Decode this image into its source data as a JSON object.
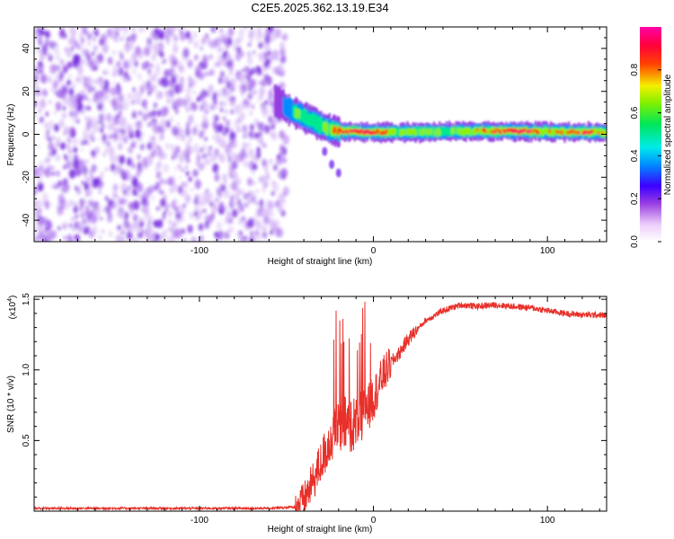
{
  "chart_data": [
    {
      "type": "heatmap",
      "title": "C2E5.2025.362.13.19.E34",
      "xlabel": "Height of straight line (km)",
      "ylabel": "Frequency (Hz)",
      "xlim": [
        -195,
        134
      ],
      "ylim": [
        -50,
        50
      ],
      "xticks": [
        -100,
        0,
        100
      ],
      "xtick_labels": [
        "-100",
        "0",
        "100"
      ],
      "yticks": [
        -40,
        -20,
        0,
        20,
        40
      ],
      "ytick_labels": [
        "-40",
        "-20",
        "0",
        "20",
        "40"
      ],
      "colorbar": {
        "label": "Normalized spectral amplitude",
        "range": [
          0,
          1
        ],
        "ticks": [
          0.0,
          0.2,
          0.4,
          0.6,
          0.8
        ],
        "tick_labels": [
          "0.0",
          "0.2",
          "0.4",
          "0.6",
          "0.8"
        ]
      },
      "noise_region_x": [
        -195,
        -50
      ],
      "ridge": {
        "x": [
          -57,
          -50,
          -45,
          -40,
          -35,
          -30,
          -25,
          -20,
          -15,
          -10,
          -5,
          0,
          10,
          20,
          40,
          60,
          80,
          100,
          120,
          134
        ],
        "freq": [
          16,
          12,
          10,
          8,
          6,
          4,
          2,
          1.5,
          1.5,
          1.3,
          1,
          1,
          1,
          1,
          1.2,
          1.5,
          1.5,
          1.2,
          1,
          1
        ],
        "amplitude": [
          0.15,
          0.4,
          0.55,
          0.55,
          0.5,
          0.55,
          0.7,
          0.8,
          0.85,
          0.9,
          0.95,
          0.95,
          0.7,
          0.65,
          0.6,
          0.7,
          0.95,
          0.7,
          0.85,
          0.7
        ]
      },
      "branch": {
        "x": [
          -28,
          -24,
          -20
        ],
        "freq": [
          -8,
          -14,
          -18
        ]
      }
    },
    {
      "type": "line",
      "xlabel": "Height of straight line (km)",
      "ylabel": "SNR (10 * v/v)",
      "y_scale_label": "(x10",
      "y_scale_exponent": "4",
      "y_scale_suffix": ")",
      "xlim": [
        -195,
        134
      ],
      "ylim": [
        0,
        1.52
      ],
      "xticks": [
        -100,
        0,
        100
      ],
      "xtick_labels": [
        "-100",
        "0",
        "100"
      ],
      "yticks": [
        0.5,
        1.0,
        1.5
      ],
      "ytick_labels": [
        "0.5",
        "1.0",
        "1.5"
      ],
      "color": "#e8302a",
      "series": [
        {
          "name": "SNR",
          "x": [
            -195,
            -150,
            -100,
            -60,
            -45,
            -40,
            -35,
            -30,
            -25,
            -20,
            -15,
            -10,
            -5,
            0,
            5,
            10,
            15,
            20,
            30,
            40,
            50,
            60,
            70,
            80,
            90,
            100,
            110,
            120,
            130,
            134
          ],
          "values": [
            0.02,
            0.02,
            0.02,
            0.02,
            0.03,
            0.08,
            0.2,
            0.35,
            0.5,
            0.6,
            0.62,
            0.62,
            0.7,
            0.8,
            0.95,
            1.05,
            1.12,
            1.22,
            1.35,
            1.42,
            1.46,
            1.45,
            1.46,
            1.45,
            1.44,
            1.42,
            1.4,
            1.39,
            1.39,
            1.38
          ]
        }
      ]
    }
  ]
}
